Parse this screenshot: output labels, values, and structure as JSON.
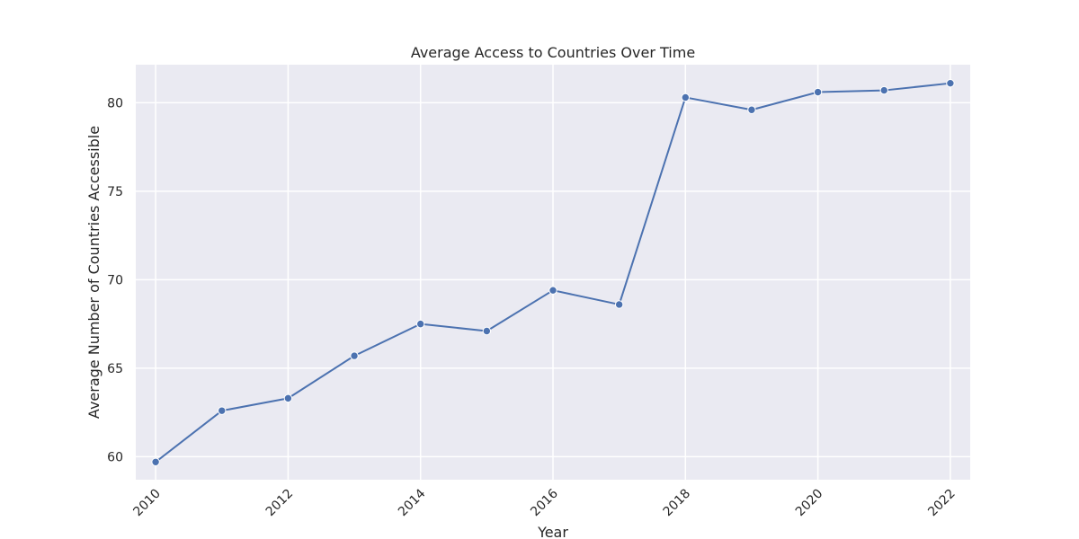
{
  "chart_data": {
    "type": "line",
    "title": "Average Access to Countries Over Time",
    "xlabel": "Year",
    "ylabel": "Average Number of Countries Accessible",
    "x": [
      2010,
      2011,
      2012,
      2013,
      2014,
      2015,
      2016,
      2017,
      2018,
      2019,
      2020,
      2021,
      2022
    ],
    "series": [
      {
        "values": [
          59.7,
          62.6,
          63.3,
          65.7,
          67.5,
          67.1,
          69.4,
          68.6,
          80.3,
          79.6,
          80.6,
          80.7,
          81.1
        ]
      }
    ],
    "xticks": [
      "2010",
      "2012",
      "2014",
      "2016",
      "2018",
      "2020",
      "2022"
    ],
    "yticks": [
      "60",
      "65",
      "70",
      "75",
      "80"
    ],
    "xlim": [
      2009.7,
      2022.3
    ],
    "ylim": [
      58.7,
      82.15
    ],
    "grid": true,
    "colors": {
      "line": "#4c72b0",
      "plot_background": "#eaeaf2",
      "grid": "#ffffff"
    }
  }
}
